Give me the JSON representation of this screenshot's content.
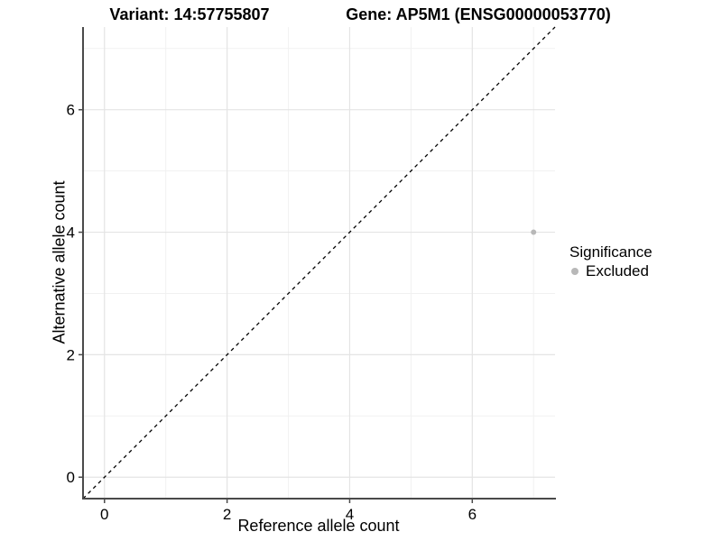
{
  "header": {
    "variant_title": "Variant: 14:57755807",
    "gene_title": "Gene: AP5M1 (ENSG00000053770)"
  },
  "chart_data": {
    "type": "scatter",
    "title_left": "Variant: 14:57755807",
    "title_right": "Gene: AP5M1 (ENSG00000053770)",
    "xlabel": "Reference allele count",
    "ylabel": "Alternative allele count",
    "xlim": [
      -0.35,
      7.35
    ],
    "ylim": [
      -0.35,
      7.35
    ],
    "x_major_ticks": [
      0,
      2,
      4,
      6
    ],
    "y_major_ticks": [
      0,
      2,
      4,
      6
    ],
    "x_minor_gridlines": [
      1,
      3,
      5,
      7
    ],
    "y_minor_gridlines": [
      1,
      3,
      5,
      7
    ],
    "grid": "major+minor",
    "points": [
      {
        "x": 7,
        "y": 4,
        "significance": "Excluded"
      }
    ],
    "identity_line": {
      "slope": 1,
      "intercept": 0,
      "style": "dashed",
      "color": "#000000"
    },
    "legend": {
      "title": "Significance",
      "position": "right",
      "entries": [
        {
          "label": "Excluded",
          "color": "#b8b8b8"
        }
      ]
    },
    "colors": {
      "point_excluded": "#b8b8b8",
      "grid_major": "#e4e4e4",
      "grid_minor": "#f1f1f1",
      "axis_line": "#4a4a4a",
      "text": "#000000",
      "background": "#ffffff"
    }
  }
}
